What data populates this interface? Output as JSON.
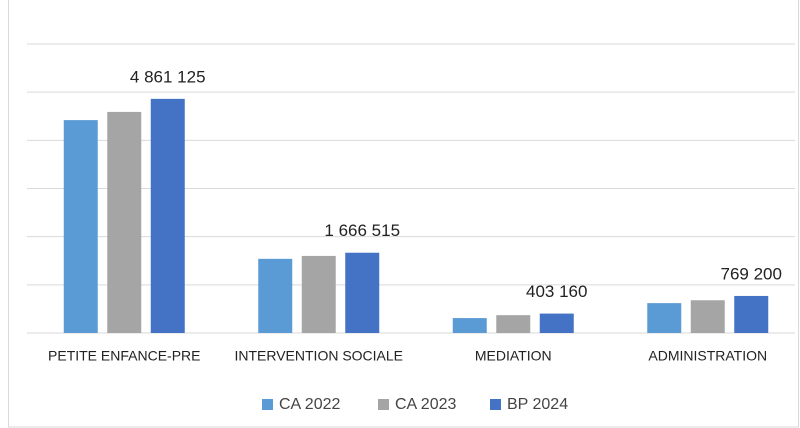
{
  "chart_data": {
    "type": "bar",
    "categories": [
      "PETITE ENFANCE-PRE",
      "INTERVENTION SOCIALE",
      "MEDIATION",
      "ADMINISTRATION"
    ],
    "series": [
      {
        "name": "CA 2022",
        "color": "#5b9bd5",
        "values": [
          4420000,
          1540000,
          310000,
          620000
        ]
      },
      {
        "name": "CA 2023",
        "color": "#a5a5a5",
        "values": [
          4590000,
          1600000,
          370000,
          680000
        ]
      },
      {
        "name": "BP 2024",
        "color": "#4472c4",
        "values": [
          4861125,
          1666515,
          403160,
          769200
        ],
        "value_labels": [
          "4 861 125",
          "1 666 515",
          "403 160",
          "769 200"
        ]
      }
    ],
    "ylim": [
      0,
      6000000
    ],
    "yticks": [
      0,
      1000000,
      2000000,
      3000000,
      4000000,
      5000000,
      6000000
    ],
    "grid": true
  }
}
